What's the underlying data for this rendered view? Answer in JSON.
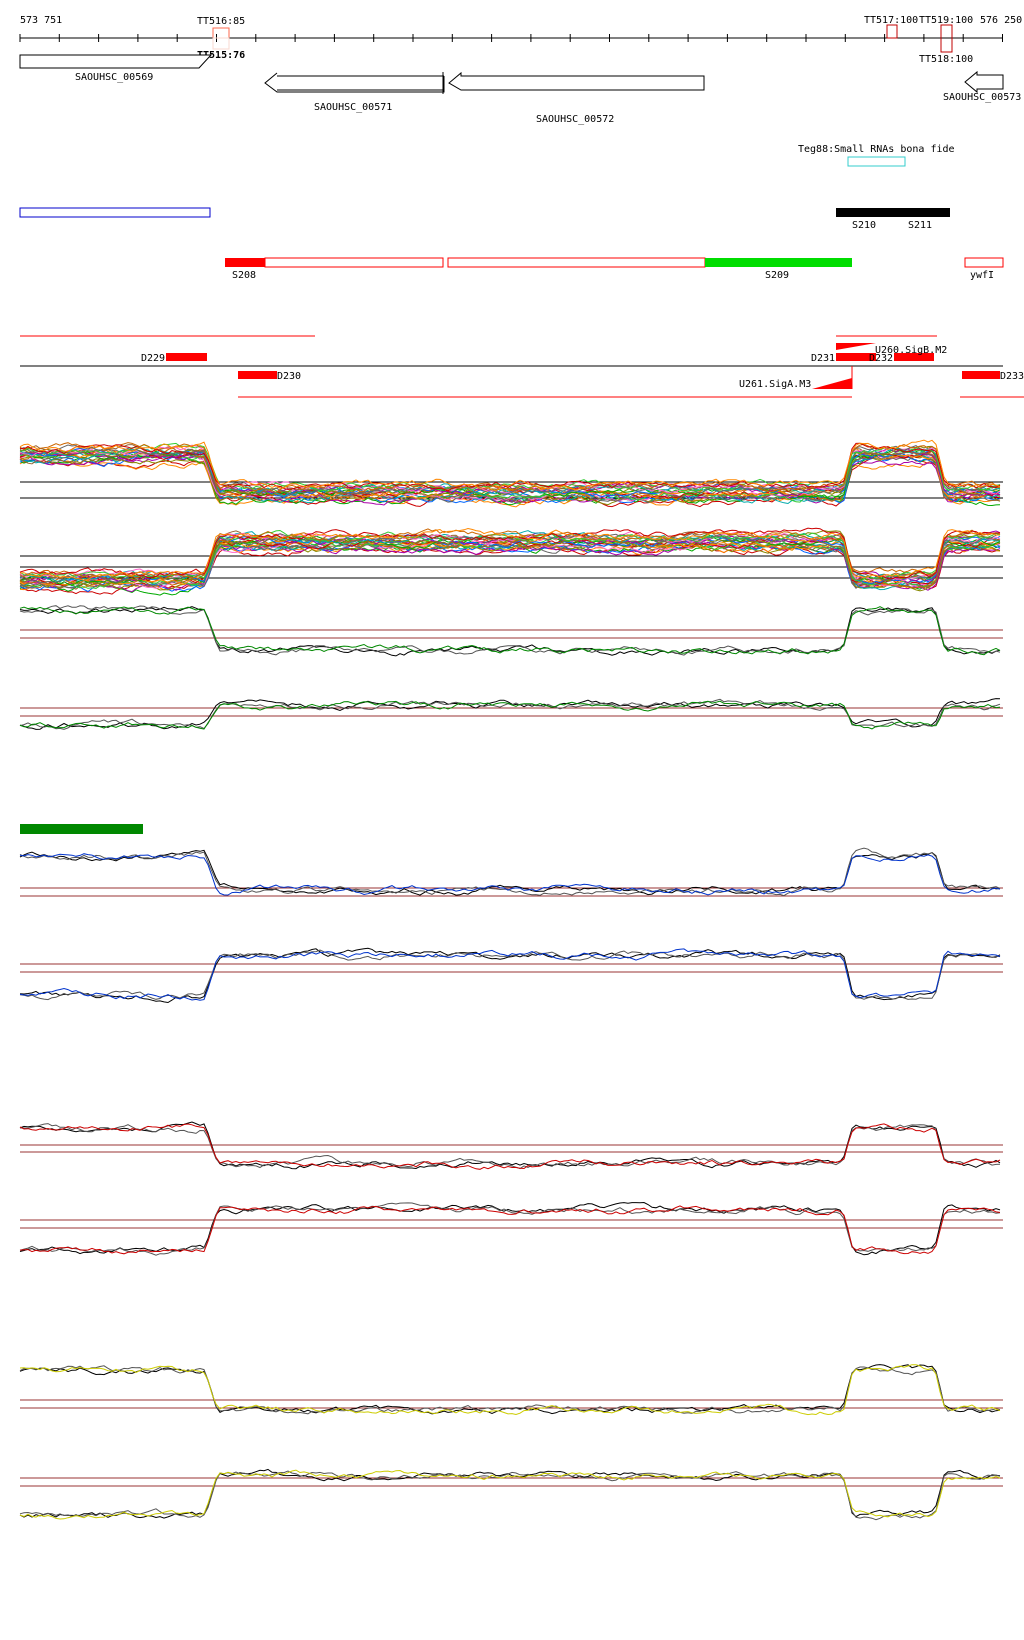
{
  "ruler": {
    "start": "573 751",
    "end": "576 250"
  },
  "terminators": [
    {
      "label": "TT516:85",
      "color": "#ff6a4d"
    },
    {
      "label": "TT515:76",
      "color": "#000000"
    },
    {
      "label": "TT517:100",
      "color": "#c00000"
    },
    {
      "label": "TT519:100",
      "color": "#c00000"
    },
    {
      "label": "TT518:100",
      "color": "#c00000"
    }
  ],
  "genes": [
    "SAOUHSC_00569",
    "SAOUHSC_00571",
    "SAOUHSC_00572",
    "SAOUHSC_00573"
  ],
  "teg": {
    "label": "Teg88:Small RNAs bona fide",
    "color": "#33cccc"
  },
  "segments": [
    "S208",
    "S209",
    "S210",
    "S211",
    "ywfI"
  ],
  "dsegments": [
    "D229",
    "D230",
    "D231",
    "D232",
    "D233"
  ],
  "promoters": [
    "U260.SigB.M2",
    "U261.SigA.M3"
  ],
  "colors": {
    "red": "#ff0000",
    "green": "#00dd00",
    "blue": "#0000cc",
    "dark_green": "#008800",
    "yellow": "#cccc00",
    "axis_line": "#993333"
  },
  "track_colors": [
    "#008800",
    "#0033cc",
    "#cc0000",
    "#cccc00"
  ]
}
